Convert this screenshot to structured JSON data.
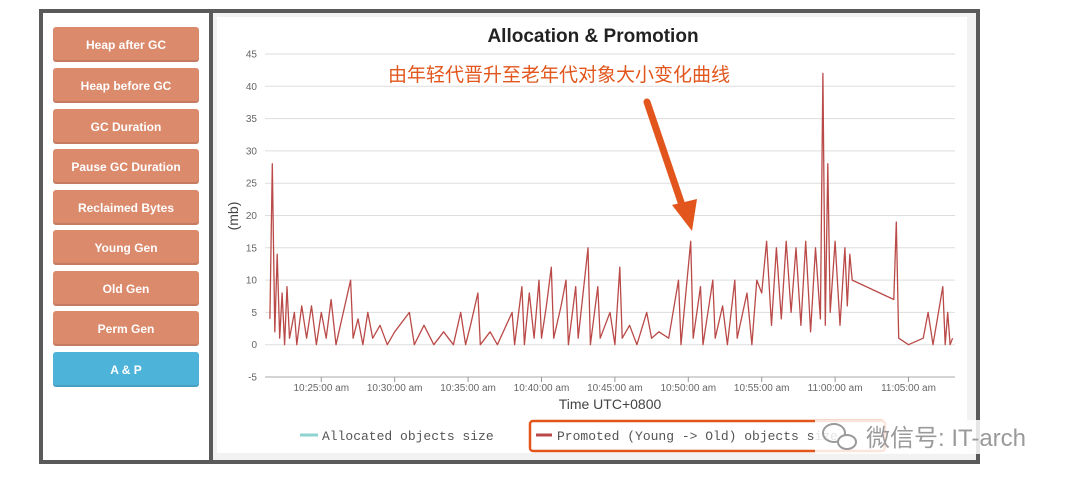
{
  "sidebar": {
    "buttons": [
      {
        "label": "Heap after GC",
        "active": false
      },
      {
        "label": "Heap before GC",
        "active": false
      },
      {
        "label": "GC Duration",
        "active": false
      },
      {
        "label": "Pause GC Duration",
        "active": false
      },
      {
        "label": "Reclaimed Bytes",
        "active": false
      },
      {
        "label": "Young Gen",
        "active": false
      },
      {
        "label": "Old Gen",
        "active": false
      },
      {
        "label": "Perm Gen",
        "active": false
      },
      {
        "label": "A & P",
        "active": true
      }
    ]
  },
  "annotation": "由年轻代晋升至老年代对象大小变化曲线",
  "watermark": "微信号: IT-arch",
  "colors": {
    "promoted": "#b94a48",
    "allocated": "#8fd4d0",
    "annotation": "#e2561d",
    "active_button": "#4eb3d9",
    "button": "#dc8a6c"
  },
  "chart_data": {
    "type": "line",
    "title": "Allocation & Promotion",
    "xlabel": "Time UTC+0800",
    "ylabel": "(mb)",
    "ylim": [
      -5,
      45
    ],
    "yticks": [
      "-5",
      "0",
      "5",
      "10",
      "15",
      "20",
      "25",
      "30",
      "35",
      "40",
      "45"
    ],
    "xticks": [
      "10:25:00 am",
      "10:30:00 am",
      "10:35:00 am",
      "10:40:00 am",
      "10:45:00 am",
      "10:50:00 am",
      "10:55:00 am",
      "11:00:00 am",
      "11:05:00 am"
    ],
    "grid": true,
    "legend_position": "bottom",
    "series": [
      {
        "name": "Allocated objects size",
        "values": []
      },
      {
        "name": "Promoted (Young -> Old) objects size",
        "points": [
          [
            "10:21:30",
            4
          ],
          [
            "10:21:40",
            28
          ],
          [
            "10:21:50",
            2
          ],
          [
            "10:22:00",
            14
          ],
          [
            "10:22:10",
            1
          ],
          [
            "10:22:20",
            8
          ],
          [
            "10:22:30",
            0
          ],
          [
            "10:22:40",
            9
          ],
          [
            "10:22:50",
            1
          ],
          [
            "10:23:10",
            5
          ],
          [
            "10:23:20",
            0
          ],
          [
            "10:23:40",
            6
          ],
          [
            "10:24:00",
            1
          ],
          [
            "10:24:20",
            6
          ],
          [
            "10:24:40",
            0
          ],
          [
            "10:25:00",
            5
          ],
          [
            "10:25:20",
            1
          ],
          [
            "10:25:40",
            7
          ],
          [
            "10:26:00",
            0
          ],
          [
            "10:27:00",
            10
          ],
          [
            "10:27:10",
            1
          ],
          [
            "10:27:30",
            4
          ],
          [
            "10:27:50",
            0
          ],
          [
            "10:28:10",
            5
          ],
          [
            "10:28:30",
            1
          ],
          [
            "10:29:00",
            3
          ],
          [
            "10:29:30",
            0
          ],
          [
            "10:30:00",
            2
          ],
          [
            "10:31:00",
            5
          ],
          [
            "10:31:20",
            0
          ],
          [
            "10:32:00",
            3
          ],
          [
            "10:32:40",
            0
          ],
          [
            "10:33:20",
            2
          ],
          [
            "10:34:00",
            0
          ],
          [
            "10:34:30",
            5
          ],
          [
            "10:34:50",
            0
          ],
          [
            "10:35:10",
            3
          ],
          [
            "10:35:40",
            8
          ],
          [
            "10:35:50",
            0
          ],
          [
            "10:36:30",
            2
          ],
          [
            "10:37:00",
            0
          ],
          [
            "10:38:00",
            5
          ],
          [
            "10:38:10",
            0
          ],
          [
            "10:38:40",
            9
          ],
          [
            "10:38:50",
            0
          ],
          [
            "10:39:10",
            8
          ],
          [
            "10:39:30",
            1
          ],
          [
            "10:39:50",
            10
          ],
          [
            "10:40:00",
            1
          ],
          [
            "10:40:20",
            6
          ],
          [
            "10:40:40",
            12
          ],
          [
            "10:40:50",
            1
          ],
          [
            "10:41:20",
            6
          ],
          [
            "10:41:40",
            10
          ],
          [
            "10:41:50",
            0
          ],
          [
            "10:42:20",
            9
          ],
          [
            "10:42:30",
            1
          ],
          [
            "10:43:10",
            15
          ],
          [
            "10:43:20",
            0
          ],
          [
            "10:43:50",
            9
          ],
          [
            "10:44:00",
            1
          ],
          [
            "10:44:40",
            5
          ],
          [
            "10:45:00",
            0
          ],
          [
            "10:45:20",
            12
          ],
          [
            "10:45:30",
            1
          ],
          [
            "10:46:00",
            3
          ],
          [
            "10:46:30",
            0
          ],
          [
            "10:47:10",
            5
          ],
          [
            "10:47:30",
            1
          ],
          [
            "10:48:00",
            2
          ],
          [
            "10:48:40",
            1
          ],
          [
            "10:49:20",
            10
          ],
          [
            "10:49:30",
            0
          ],
          [
            "10:50:10",
            16
          ],
          [
            "10:50:20",
            1
          ],
          [
            "10:50:50",
            9
          ],
          [
            "10:51:00",
            0
          ],
          [
            "10:51:40",
            10
          ],
          [
            "10:51:50",
            1
          ],
          [
            "10:52:20",
            6
          ],
          [
            "10:52:40",
            0
          ],
          [
            "10:53:10",
            10
          ],
          [
            "10:53:20",
            1
          ],
          [
            "10:54:00",
            8
          ],
          [
            "10:54:20",
            0
          ],
          [
            "10:54:40",
            10
          ],
          [
            "10:55:00",
            8
          ],
          [
            "10:55:20",
            16
          ],
          [
            "10:55:40",
            3
          ],
          [
            "10:56:00",
            15
          ],
          [
            "10:56:20",
            4
          ],
          [
            "10:56:40",
            16
          ],
          [
            "10:57:00",
            5
          ],
          [
            "10:57:20",
            15
          ],
          [
            "10:57:40",
            3
          ],
          [
            "10:58:00",
            16
          ],
          [
            "10:58:20",
            2
          ],
          [
            "10:58:40",
            15
          ],
          [
            "10:59:00",
            4
          ],
          [
            "10:59:10",
            42
          ],
          [
            "10:59:20",
            3
          ],
          [
            "10:59:30",
            28
          ],
          [
            "10:59:40",
            5
          ],
          [
            "11:00:00",
            16
          ],
          [
            "11:00:20",
            3
          ],
          [
            "11:00:40",
            15
          ],
          [
            "11:00:50",
            6
          ],
          [
            "11:01:00",
            14
          ],
          [
            "11:01:10",
            10
          ],
          [
            "11:04:00",
            7
          ],
          [
            "11:04:10",
            19
          ],
          [
            "11:04:20",
            1
          ],
          [
            "11:05:00",
            0
          ],
          [
            "11:06:00",
            1
          ],
          [
            "11:06:20",
            5
          ],
          [
            "11:06:40",
            0
          ],
          [
            "11:07:20",
            9
          ],
          [
            "11:07:30",
            0
          ],
          [
            "11:07:40",
            5
          ],
          [
            "11:07:50",
            0
          ],
          [
            "11:08:00",
            1
          ]
        ]
      }
    ]
  }
}
